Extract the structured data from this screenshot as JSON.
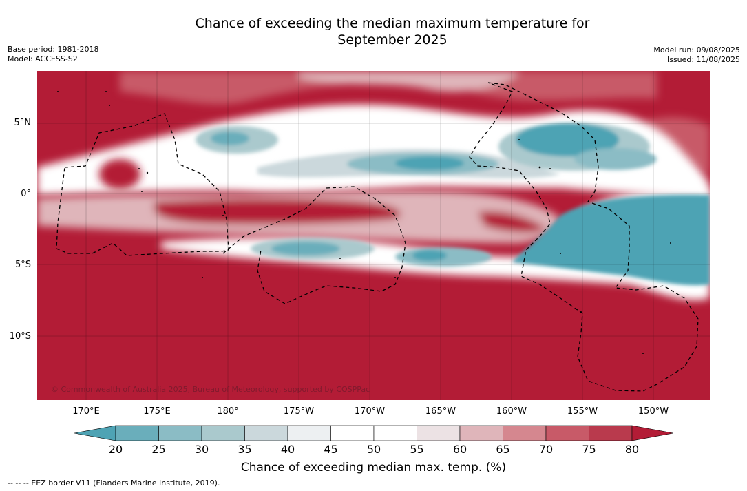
{
  "header": {
    "title_line1": "Chance of exceeding the median maximum temperature for",
    "title_line2": "September 2025",
    "base_period": "Base period: 1981-2018",
    "model": "Model: ACCESS-S2",
    "model_run": "Model run: 09/08/2025",
    "issued": "Issued: 11/08/2025"
  },
  "map": {
    "lat_labels": [
      "5°N",
      "0°",
      "5°S",
      "10°S"
    ],
    "lon_labels": [
      "170°E",
      "175°E",
      "180°",
      "175°W",
      "170°W",
      "165°W",
      "160°W",
      "155°W",
      "150°W"
    ],
    "copyright": "© Commonwealth of Australia 2025, Bureau of Meteorology, supported by COSPPac",
    "colors": {
      "warm_high": "#b31c36",
      "cool_low": "#4aa2b4",
      "neutral": "#ffffff"
    }
  },
  "colorbar": {
    "ticks": [
      "20",
      "25",
      "30",
      "35",
      "40",
      "45",
      "50",
      "55",
      "60",
      "65",
      "70",
      "75",
      "80"
    ],
    "label": "Chance of exceeding median max. temp. (%)",
    "colors": [
      "#4ea3b4",
      "#6aaebb",
      "#8bbcc5",
      "#aac9cd",
      "#cbd8dc",
      "#edf0f2",
      "#ffffff",
      "#ffffff",
      "#ece2e4",
      "#dfb5ba",
      "#d5878f",
      "#c85a68",
      "#b93a4d",
      "#b31c36"
    ]
  },
  "footnote": "--  --  -- EEZ border V11 (Flanders Marine Institute, 2019)."
}
